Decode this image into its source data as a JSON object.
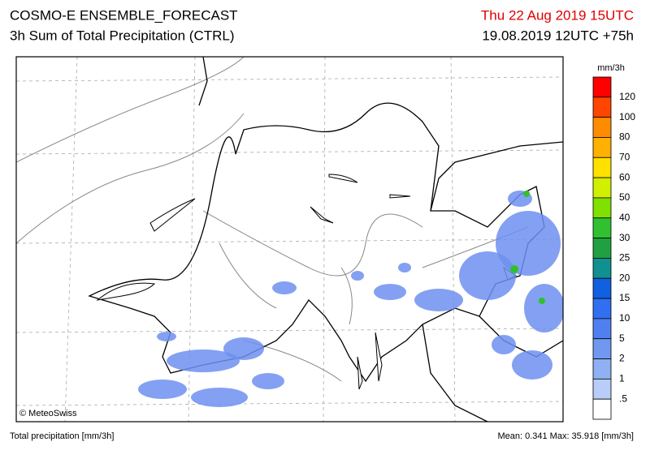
{
  "header": {
    "title": "COSMO-E ENSEMBLE_FORECAST",
    "subtitle": "3h Sum of Total Precipitation (CTRL)",
    "valid_time": "Thu 22 Aug 2019 15UTC",
    "run_time": "19.08.2019 12UTC +75h"
  },
  "map": {
    "copyright": "© MeteoSwiss"
  },
  "colorbar": {
    "unit": "mm/3h",
    "colors": [
      "#ff0000",
      "#ff4500",
      "#ff8c00",
      "#ffb000",
      "#ffe000",
      "#d0f000",
      "#80e000",
      "#30c030",
      "#20a040",
      "#109090",
      "#1060e0",
      "#3070f0",
      "#5080f0",
      "#7098f0",
      "#90b0f4",
      "#b8cef8",
      "#ffffff"
    ],
    "labels": [
      "120",
      "100",
      "80",
      "70",
      "60",
      "50",
      "40",
      "30",
      "25",
      "20",
      "15",
      "10",
      "5",
      "2",
      "1",
      ".5"
    ]
  },
  "footer": {
    "left": "Total precipitation [mm/3h]",
    "right": "Mean:  0.341 Max: 35.918 [mm/3h]"
  }
}
